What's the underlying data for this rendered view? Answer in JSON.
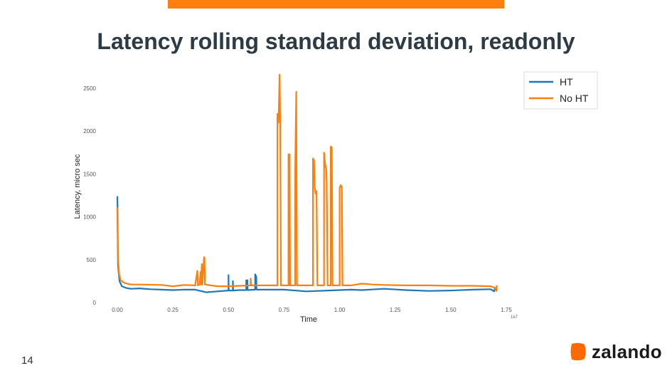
{
  "slide": {
    "title": "Latency rolling standard deviation, readonly",
    "page_number": "14",
    "brand": "zalando",
    "accent_color": "#ff7f0e"
  },
  "chart_data": {
    "type": "line",
    "xlabel": "Time",
    "ylabel": "Latency, micro sec",
    "x_scale_note": "1e7",
    "xlim": [
      0,
      1.75
    ],
    "ylim": [
      0,
      2500
    ],
    "xticks": [
      0.0,
      0.25,
      0.5,
      0.75,
      1.0,
      1.25,
      1.5,
      1.75
    ],
    "xtick_labels": [
      "0.00",
      "0.25",
      "0.50",
      "0.75",
      "1.00",
      "1.25",
      "1.50",
      "1.75"
    ],
    "yticks": [
      0,
      500,
      1000,
      1500,
      2000,
      2500
    ],
    "ytick_labels": [
      "0",
      "500",
      "1000",
      "1500",
      "2000",
      "2500"
    ],
    "grid": false,
    "legend_position": "top-right",
    "series": [
      {
        "name": "HT",
        "color": "#1f77b4",
        "points": [
          [
            0.0,
            1240
          ],
          [
            0.001,
            1100
          ],
          [
            0.003,
            440
          ],
          [
            0.005,
            370
          ],
          [
            0.01,
            250
          ],
          [
            0.02,
            190
          ],
          [
            0.04,
            170
          ],
          [
            0.06,
            160
          ],
          [
            0.1,
            165
          ],
          [
            0.15,
            155
          ],
          [
            0.2,
            150
          ],
          [
            0.25,
            145
          ],
          [
            0.3,
            150
          ],
          [
            0.35,
            150
          ],
          [
            0.4,
            120
          ],
          [
            0.45,
            130
          ],
          [
            0.5,
            140
          ],
          [
            0.5,
            320
          ],
          [
            0.501,
            140
          ],
          [
            0.52,
            140
          ],
          [
            0.52,
            250
          ],
          [
            0.521,
            140
          ],
          [
            0.55,
            145
          ],
          [
            0.58,
            145
          ],
          [
            0.58,
            260
          ],
          [
            0.585,
            260
          ],
          [
            0.586,
            145
          ],
          [
            0.62,
            150
          ],
          [
            0.62,
            330
          ],
          [
            0.625,
            300
          ],
          [
            0.626,
            150
          ],
          [
            0.7,
            150
          ],
          [
            0.75,
            150
          ],
          [
            0.85,
            130
          ],
          [
            0.95,
            140
          ],
          [
            1.0,
            145
          ],
          [
            1.05,
            150
          ],
          [
            1.1,
            145
          ],
          [
            1.2,
            160
          ],
          [
            1.3,
            145
          ],
          [
            1.4,
            135
          ],
          [
            1.5,
            140
          ],
          [
            1.6,
            150
          ],
          [
            1.68,
            155
          ],
          [
            1.695,
            130
          ],
          [
            1.7,
            175
          ]
        ]
      },
      {
        "name": "No HT",
        "color": "#ff7f0e",
        "points": [
          [
            0.0,
            1110
          ],
          [
            0.001,
            850
          ],
          [
            0.003,
            520
          ],
          [
            0.008,
            330
          ],
          [
            0.015,
            260
          ],
          [
            0.03,
            230
          ],
          [
            0.06,
            210
          ],
          [
            0.1,
            210
          ],
          [
            0.2,
            205
          ],
          [
            0.25,
            190
          ],
          [
            0.3,
            205
          ],
          [
            0.35,
            200
          ],
          [
            0.36,
            370
          ],
          [
            0.362,
            200
          ],
          [
            0.37,
            210
          ],
          [
            0.375,
            360
          ],
          [
            0.377,
            210
          ],
          [
            0.38,
            450
          ],
          [
            0.383,
            210
          ],
          [
            0.39,
            530
          ],
          [
            0.392,
            520
          ],
          [
            0.394,
            210
          ],
          [
            0.42,
            200
          ],
          [
            0.45,
            190
          ],
          [
            0.5,
            190
          ],
          [
            0.55,
            195
          ],
          [
            0.6,
            200
          ],
          [
            0.6,
            280
          ],
          [
            0.602,
            200
          ],
          [
            0.62,
            200
          ],
          [
            0.72,
            200
          ],
          [
            0.72,
            2200
          ],
          [
            0.725,
            2100
          ],
          [
            0.73,
            2660
          ],
          [
            0.733,
            2020
          ],
          [
            0.736,
            200
          ],
          [
            0.77,
            200
          ],
          [
            0.77,
            1730
          ],
          [
            0.775,
            1730
          ],
          [
            0.777,
            200
          ],
          [
            0.8,
            200
          ],
          [
            0.8,
            1540
          ],
          [
            0.805,
            2460
          ],
          [
            0.808,
            200
          ],
          [
            0.88,
            200
          ],
          [
            0.88,
            1680
          ],
          [
            0.885,
            1660
          ],
          [
            0.888,
            1350
          ],
          [
            0.892,
            1270
          ],
          [
            0.896,
            1300
          ],
          [
            0.9,
            200
          ],
          [
            0.93,
            200
          ],
          [
            0.93,
            1750
          ],
          [
            0.935,
            1610
          ],
          [
            0.94,
            1550
          ],
          [
            0.942,
            1400
          ],
          [
            0.946,
            200
          ],
          [
            0.96,
            200
          ],
          [
            0.96,
            1820
          ],
          [
            0.965,
            1810
          ],
          [
            0.968,
            200
          ],
          [
            1.0,
            200
          ],
          [
            1.0,
            1340
          ],
          [
            1.005,
            1370
          ],
          [
            1.01,
            1350
          ],
          [
            1.013,
            200
          ],
          [
            1.05,
            200
          ],
          [
            1.1,
            220
          ],
          [
            1.15,
            210
          ],
          [
            1.2,
            205
          ],
          [
            1.3,
            200
          ],
          [
            1.4,
            200
          ],
          [
            1.5,
            195
          ],
          [
            1.6,
            195
          ],
          [
            1.68,
            190
          ],
          [
            1.7,
            170
          ],
          [
            1.705,
            135
          ],
          [
            1.707,
            200
          ]
        ]
      }
    ]
  }
}
